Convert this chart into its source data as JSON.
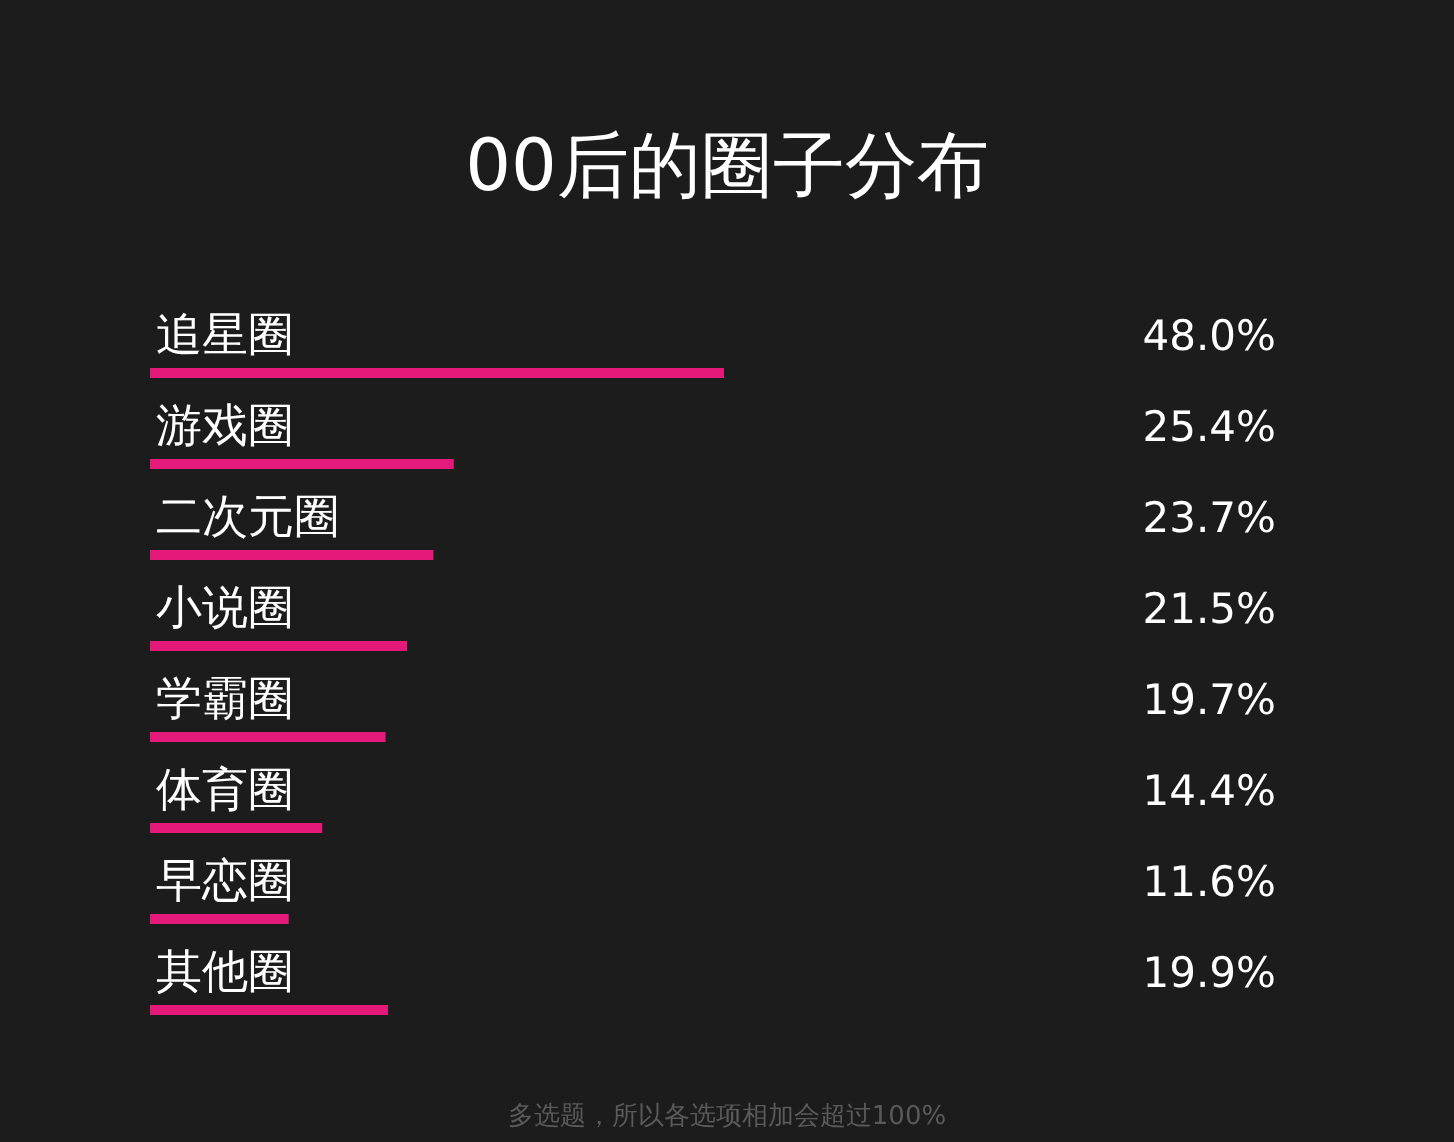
{
  "chart_data": {
    "type": "bar",
    "orientation": "horizontal",
    "title": "00后的圈子分布",
    "categories": [
      "追星圈",
      "游戏圈",
      "二次元圈",
      "小说圈",
      "学霸圈",
      "体育圈",
      "早恋圈",
      "其他圈"
    ],
    "values": [
      48.0,
      25.4,
      23.7,
      21.5,
      19.7,
      14.4,
      11.6,
      19.9
    ],
    "value_labels": [
      "48.0%",
      "25.4%",
      "23.7%",
      "21.5%",
      "19.7%",
      "14.4%",
      "11.6%",
      "19.9%"
    ],
    "color": "#e5197a",
    "annotations": [
      "多选题，所以各选项相加会超过100%"
    ]
  }
}
